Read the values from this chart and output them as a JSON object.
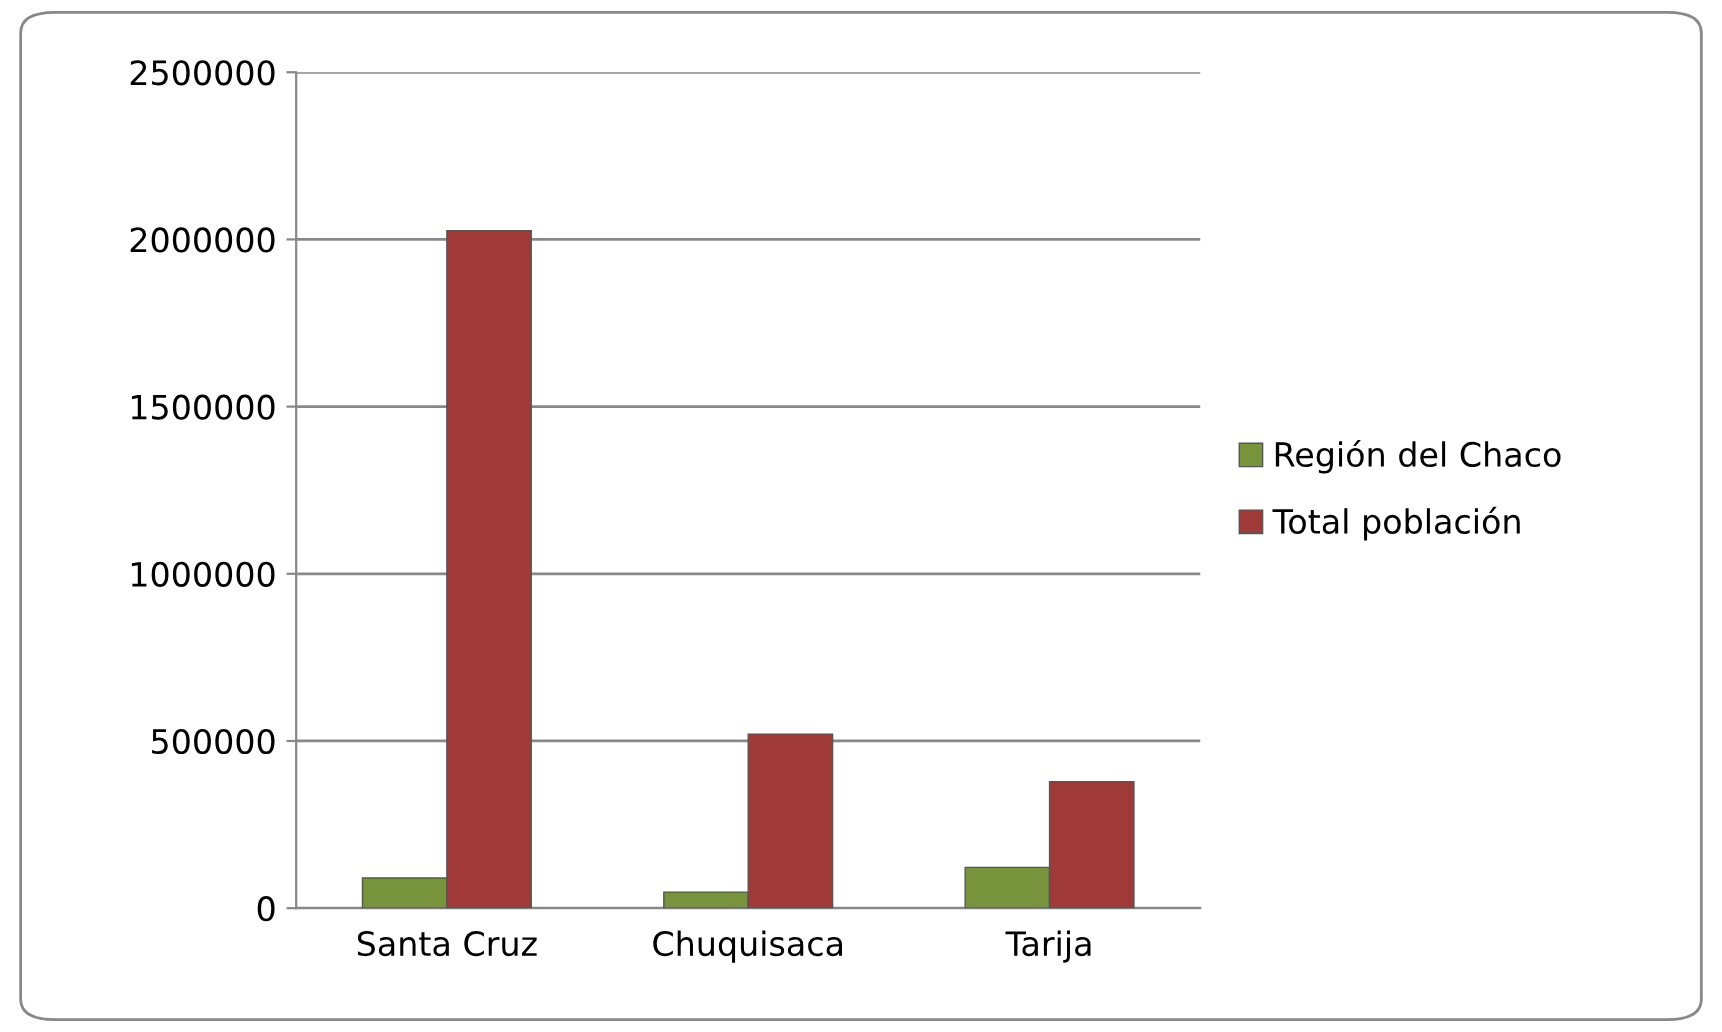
{
  "chart_data": {
    "type": "bar",
    "categories": [
      "Santa Cruz",
      "Chuquisaca",
      "Tarija"
    ],
    "series": [
      {
        "name": "Región del Chaco",
        "color": "#77933c",
        "values": [
          90000,
          48000,
          122000
        ]
      },
      {
        "name": "Total población",
        "color": "#a03a38",
        "values": [
          2026000,
          520000,
          378000
        ]
      }
    ],
    "ylim": [
      0,
      2500000
    ],
    "yticks": [
      0,
      500000,
      1000000,
      1500000,
      2000000,
      2500000
    ],
    "grid": "y",
    "legend": "right"
  }
}
